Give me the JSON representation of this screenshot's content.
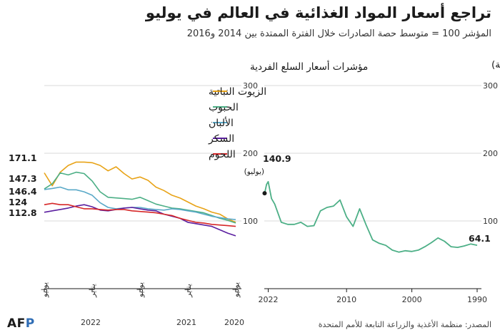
{
  "title": "تراجع أسعار المواد الغذائية في العالم في يوليو",
  "subtitle": "المؤشر 100 = متوسط حصة الصادرات خلال الفترة الممتدة بين 2014 و2016",
  "source": "المصدر: منظمة الأغذية والزراعة التابعة للأمم المتحدة",
  "logo": {
    "text": "AFP",
    "accent_color": "#2f6db5",
    "semantic": "afp-logo"
  },
  "chart_data": [
    {
      "type": "line",
      "title": "مؤشرات أسعار السلع الفردية",
      "ylim": [
        0,
        300
      ],
      "yticks": [
        100,
        200,
        300
      ],
      "x_ticks": [
        {
          "label": "يوليو",
          "t": 0
        },
        {
          "label": "يناير",
          "t": 6
        },
        {
          "label": "يوليو",
          "t": 12
        },
        {
          "label": "يناير",
          "t": 18
        },
        {
          "label": "يوليو",
          "t": 24
        }
      ],
      "year_labels": [
        {
          "label": "2020",
          "t": 0
        },
        {
          "label": "2021",
          "t": 6
        },
        {
          "label": "2022",
          "t": 18
        }
      ],
      "x_unit_note": "months, July 2020 (t=0) to July 2022 (t=24), axis reversed (right-to-left)",
      "value_labels": [
        "171.1",
        "147.3",
        "146.4",
        "124",
        "112.8"
      ],
      "series": [
        {
          "name": "الزيوت النباتية",
          "color": "#e8a317",
          "values": [
            98,
            103,
            110,
            113,
            118,
            122,
            128,
            134,
            138,
            145,
            150,
            160,
            165,
            162,
            170,
            180,
            174,
            182,
            186,
            187,
            187,
            182,
            172,
            152,
            171.1
          ]
        },
        {
          "name": "الحبوب",
          "color": "#4caf86",
          "values": [
            97,
            101,
            104,
            108,
            112,
            114,
            116,
            118,
            119,
            122,
            125,
            130,
            135,
            132,
            133,
            134,
            135,
            143,
            159,
            170,
            172,
            168,
            171,
            155,
            147.3
          ]
        },
        {
          "name": "الألبان",
          "color": "#5aa9c8",
          "values": [
            102,
            103,
            105,
            107,
            110,
            113,
            115,
            117,
            118,
            116,
            117,
            118,
            120,
            120,
            119,
            118,
            120,
            127,
            138,
            143,
            146,
            146,
            150,
            148,
            146.4
          ]
        },
        {
          "name": "السكر",
          "color": "#5b1fa0",
          "values": [
            78,
            82,
            87,
            92,
            94,
            96,
            98,
            104,
            107,
            110,
            115,
            116,
            118,
            120,
            119,
            117,
            115,
            116,
            121,
            124,
            122,
            119,
            117,
            115,
            112.8
          ]
        },
        {
          "name": "اللحوم",
          "color": "#d62728",
          "values": [
            92,
            93,
            94,
            95,
            97,
            98,
            101,
            104,
            108,
            110,
            112,
            113,
            114,
            115,
            117,
            117,
            116,
            117,
            118,
            118,
            121,
            124,
            124,
            126,
            124
          ]
        }
      ]
    },
    {
      "type": "line",
      "title": "مؤشر الفاو لأسعار الغذاء (أسعار إسمية)",
      "ylim": [
        0,
        300
      ],
      "yticks": [
        100,
        200,
        300
      ],
      "xlim": [
        1990,
        2022.6
      ],
      "x_ticks": [
        1990,
        2000,
        2010,
        2022
      ],
      "x_reversed": true,
      "annotations": [
        {
          "value_label": "140.9",
          "note": "(يوليو)"
        },
        {
          "value_label": "64.1"
        }
      ],
      "series": [
        {
          "name": "",
          "color": "#4caf86",
          "x": [
            1990,
            1991,
            1992,
            1993,
            1994,
            1995,
            1996,
            1997,
            1998,
            1999,
            2000,
            2001,
            2002,
            2003,
            2004,
            2005,
            2006,
            2007,
            2008,
            2009,
            2010,
            2011,
            2012,
            2013,
            2014,
            2015,
            2016,
            2017,
            2018,
            2019,
            2020,
            2021,
            2021.5,
            2022,
            2022.25,
            2022.55
          ],
          "y": [
            64.1,
            66,
            63,
            61,
            62,
            70,
            75,
            68,
            62,
            57,
            55,
            56,
            54,
            57,
            64,
            67,
            72,
            94,
            118,
            92,
            106,
            131,
            122,
            120,
            115,
            93,
            92,
            98,
            95,
            95,
            98,
            125,
            133,
            158,
            154,
            140.9
          ]
        }
      ]
    }
  ]
}
